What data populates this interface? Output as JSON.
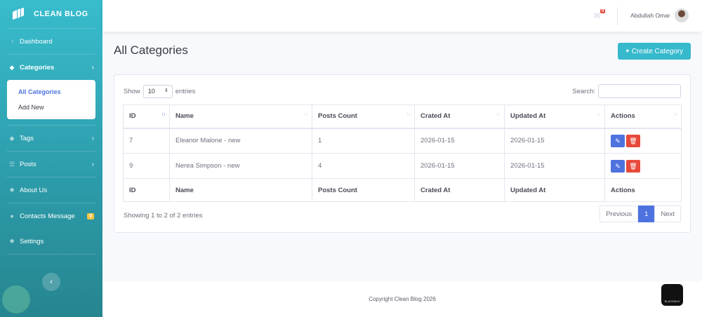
{
  "brand": {
    "name": "CLEAN BLOG"
  },
  "sidebar": {
    "items": [
      {
        "label": "Dashboard",
        "icon": "tachometer-icon"
      },
      {
        "label": "Categories",
        "icon": "tag-icon",
        "sub": [
          {
            "label": "All Categories"
          },
          {
            "label": "Add New"
          }
        ]
      },
      {
        "label": "Tags",
        "icon": "tags-icon"
      },
      {
        "label": "Posts",
        "icon": "list-icon"
      },
      {
        "label": "About Us",
        "icon": "cog-icon"
      },
      {
        "label": "Contacts Message",
        "icon": "comments-icon",
        "badge": "0"
      },
      {
        "label": "Settings",
        "icon": "cog-icon"
      }
    ]
  },
  "topbar": {
    "mail_count": "0",
    "user_name": "Abdullah Omar"
  },
  "page": {
    "title": "All Categories",
    "create_label": "Create Category"
  },
  "table": {
    "show_label": "Show",
    "entries_label": "entries",
    "page_length": "10",
    "search_label": "Search:",
    "search_value": "",
    "columns": [
      "ID",
      "Name",
      "Posts Count",
      "Crated At",
      "Updated At",
      "Actions"
    ],
    "rows": [
      {
        "id": "7",
        "name": "Eleanor Malone - new",
        "posts": "1",
        "created": "2026-01-15",
        "updated": "2026-01-15"
      },
      {
        "id": "9",
        "name": "Nerea Simpson - new",
        "posts": "4",
        "created": "2026-01-15",
        "updated": "2026-01-15"
      }
    ],
    "info": "Showing 1 to 2 of 2 entries",
    "pagination": {
      "previous": "Previous",
      "current": "1",
      "next": "Next"
    }
  },
  "footer": {
    "copyright": "Copyright Clean Blog 2026"
  },
  "colors": {
    "sidebar": "#36b9cc",
    "primary": "#4e73df",
    "danger": "#e74a3b",
    "warning": "#f6c23e"
  }
}
